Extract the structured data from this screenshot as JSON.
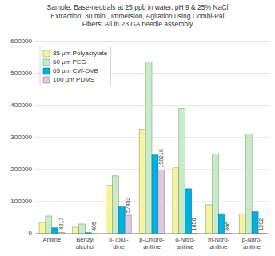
{
  "chart_data": {
    "type": "bar",
    "title": "Sample:  Base-neutrals at 25 ppb in water, pH 9 & 25% NaCl\nExtraction:  30 min., Immersion, Agitation using Combi-Pal\nFibers:  All in 23 GA needle assembly",
    "categories": [
      "Aniline",
      "Benzyl\nalcohol",
      "o-Tolui-\ndine",
      "p-Chloro-\naniline",
      "o-Nitro-\naniline",
      "m-Nitro-\naniline",
      "p-Nitro-\naniline"
    ],
    "series": [
      {
        "name": "85 μm Polyacrylate",
        "color": "#f5f5a0",
        "values": [
          35000,
          20000,
          150000,
          325000,
          205000,
          90000,
          62000
        ]
      },
      {
        "name": "60 μm PEG",
        "color": "#c8ecc8",
        "values": [
          55000,
          30000,
          180000,
          535000,
          390000,
          248000,
          310000
        ]
      },
      {
        "name": "65 μm CW-DVB",
        "color": "#00b0e0",
        "values": [
          18000,
          3000,
          83000,
          245000,
          140000,
          62000,
          68000
        ]
      },
      {
        "name": "100 μm PDMS",
        "color": "#e0c8e0",
        "values": [
          4217,
          405,
          57453,
          198216,
          1856,
          806,
          1202
        ],
        "data_labels": true
      }
    ],
    "ylim": [
      0,
      600000
    ],
    "yticks": [
      0,
      100000,
      200000,
      300000,
      400000,
      500000,
      600000
    ],
    "grid": true,
    "legend": "upper left"
  }
}
